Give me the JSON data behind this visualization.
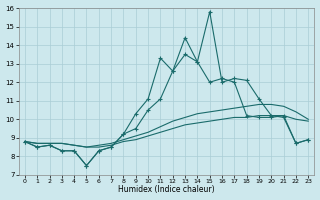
{
  "xlabel": "Humidex (Indice chaleur)",
  "xlim": [
    -0.5,
    23.5
  ],
  "ylim": [
    7,
    16
  ],
  "yticks": [
    7,
    8,
    9,
    10,
    11,
    12,
    13,
    14,
    15,
    16
  ],
  "xticks": [
    0,
    1,
    2,
    3,
    4,
    5,
    6,
    7,
    8,
    9,
    10,
    11,
    12,
    13,
    14,
    15,
    16,
    17,
    18,
    19,
    20,
    21,
    22,
    23
  ],
  "bg_color": "#cde8ed",
  "grid_color": "#aacdd5",
  "line_color": "#1a6b6b",
  "smooth1_x": [
    0,
    1,
    2,
    3,
    4,
    5,
    6,
    7,
    8,
    9,
    10,
    11,
    12,
    13,
    14,
    15,
    16,
    17,
    18,
    19,
    20,
    21,
    22,
    23
  ],
  "smooth1_y": [
    8.8,
    8.7,
    8.7,
    8.7,
    8.6,
    8.5,
    8.5,
    8.6,
    8.8,
    8.9,
    9.1,
    9.3,
    9.5,
    9.7,
    9.8,
    9.9,
    10.0,
    10.1,
    10.1,
    10.2,
    10.2,
    10.2,
    10.0,
    9.9
  ],
  "smooth2_x": [
    0,
    1,
    2,
    3,
    4,
    5,
    6,
    7,
    8,
    9,
    10,
    11,
    12,
    13,
    14,
    15,
    16,
    17,
    18,
    19,
    20,
    21,
    22,
    23
  ],
  "smooth2_y": [
    8.8,
    8.7,
    8.7,
    8.7,
    8.6,
    8.5,
    8.6,
    8.7,
    8.9,
    9.1,
    9.3,
    9.6,
    9.9,
    10.1,
    10.3,
    10.4,
    10.5,
    10.6,
    10.7,
    10.8,
    10.8,
    10.7,
    10.4,
    10.0
  ],
  "marked1_x": [
    0,
    1,
    2,
    3,
    4,
    5,
    6,
    7,
    8,
    9,
    10,
    11,
    12,
    13,
    14,
    15,
    16,
    17,
    18,
    19,
    20,
    21,
    22,
    23
  ],
  "marked1_y": [
    8.8,
    8.5,
    8.6,
    8.3,
    8.3,
    7.5,
    8.3,
    8.5,
    9.2,
    10.3,
    11.1,
    13.3,
    12.6,
    13.5,
    13.1,
    12.0,
    12.2,
    12.0,
    10.2,
    10.1,
    10.1,
    10.2,
    8.7,
    8.9
  ],
  "marked2_x": [
    0,
    1,
    2,
    3,
    4,
    5,
    6,
    7,
    8,
    9,
    10,
    11,
    12,
    13,
    14,
    15,
    16,
    17,
    18,
    19,
    20,
    21,
    22,
    23
  ],
  "marked2_y": [
    8.8,
    8.5,
    8.6,
    8.3,
    8.3,
    7.5,
    8.3,
    8.5,
    9.2,
    9.5,
    10.5,
    11.1,
    12.6,
    14.4,
    13.1,
    15.8,
    12.0,
    12.2,
    12.1,
    11.1,
    10.2,
    10.1,
    8.7,
    8.9
  ]
}
